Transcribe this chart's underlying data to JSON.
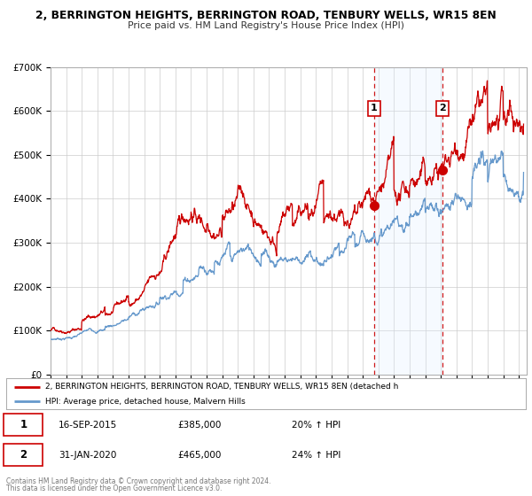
{
  "title": "2, BERRINGTON HEIGHTS, BERRINGTON ROAD, TENBURY WELLS, WR15 8EN",
  "subtitle": "Price paid vs. HM Land Registry's House Price Index (HPI)",
  "legend_line1": "2, BERRINGTON HEIGHTS, BERRINGTON ROAD, TENBURY WELLS, WR15 8EN (detached h",
  "legend_line2": "HPI: Average price, detached house, Malvern Hills",
  "footer1": "Contains HM Land Registry data © Crown copyright and database right 2024.",
  "footer2": "This data is licensed under the Open Government Licence v3.0.",
  "point1_date": "16-SEP-2015",
  "point1_price": "£385,000",
  "point1_hpi": "20% ↑ HPI",
  "point1_year": 2015.71,
  "point1_value": 385000,
  "point2_date": "31-JAN-2020",
  "point2_price": "£465,000",
  "point2_hpi": "24% ↑ HPI",
  "point2_year": 2020.08,
  "point2_value": 465000,
  "red_color": "#cc0000",
  "blue_color": "#6699cc",
  "blue_fill": "#ddeeff",
  "background_color": "#ffffff",
  "ylim": [
    0,
    700000
  ],
  "xlim_start": 1995.0,
  "xlim_end": 2025.5,
  "yticks": [
    0,
    100000,
    200000,
    300000,
    400000,
    500000,
    600000,
    700000
  ],
  "ytick_labels": [
    "£0",
    "£100K",
    "£200K",
    "£300K",
    "£400K",
    "£500K",
    "£600K",
    "£700K"
  ],
  "xticks": [
    1995,
    1996,
    1997,
    1998,
    1999,
    2000,
    2001,
    2002,
    2003,
    2004,
    2005,
    2006,
    2007,
    2008,
    2009,
    2010,
    2011,
    2012,
    2013,
    2014,
    2015,
    2016,
    2017,
    2018,
    2019,
    2020,
    2021,
    2022,
    2023,
    2024,
    2025
  ]
}
